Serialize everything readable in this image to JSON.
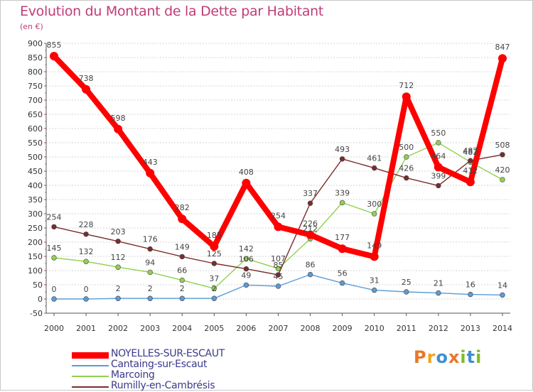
{
  "header": {
    "title": "Evolution du Montant de la Dette par Habitant",
    "subtitle": "(en €)"
  },
  "logo": {
    "text": [
      "P",
      "r",
      "o",
      "x",
      "i",
      "t",
      "i"
    ],
    "colors": [
      "#e8762b",
      "#f2a321",
      "#3f8fd2",
      "#e8762b",
      "#7cbc2c",
      "#3f8fd2",
      "#7cbc2c"
    ]
  },
  "chart_data": {
    "type": "line",
    "title": "Evolution du Montant de la Dette par Habitant",
    "ylabel": "(en €)",
    "xlabel": "",
    "ylim": [
      -50,
      900
    ],
    "yticks": [
      -50,
      0,
      50,
      100,
      150,
      200,
      250,
      300,
      350,
      400,
      450,
      500,
      550,
      600,
      650,
      700,
      750,
      800,
      850,
      900
    ],
    "x": [
      "2000",
      "2001",
      "2002",
      "2003",
      "2004",
      "2005",
      "2006",
      "2007",
      "2008",
      "2009",
      "2010",
      "2011",
      "2012",
      "2013",
      "2014"
    ],
    "grid": "horizontal",
    "series": [
      {
        "name": "NOYELLES-SUR-ESCAUT",
        "color": "#ff0000",
        "values": [
          855,
          738,
          598,
          443,
          282,
          185,
          408,
          254,
          226,
          177,
          149,
          712,
          464,
          412,
          847
        ]
      },
      {
        "name": "Cantaing-sur-Escaut",
        "color": "#5b9bd5",
        "values": [
          0,
          0,
          2,
          2,
          2,
          2,
          49,
          45,
          86,
          56,
          31,
          25,
          21,
          16,
          14
        ]
      },
      {
        "name": "Marcoing",
        "color": "#92d050",
        "values": [
          145,
          132,
          112,
          94,
          66,
          37,
          142,
          107,
          212,
          339,
          300,
          500,
          550,
          482,
          420
        ]
      },
      {
        "name": "Rumilly-en-Cambrésis",
        "color": "#7b2c2c",
        "values": [
          254,
          228,
          203,
          176,
          149,
          125,
          106,
          85,
          337,
          493,
          461,
          426,
          399,
          487,
          508
        ]
      }
    ]
  }
}
